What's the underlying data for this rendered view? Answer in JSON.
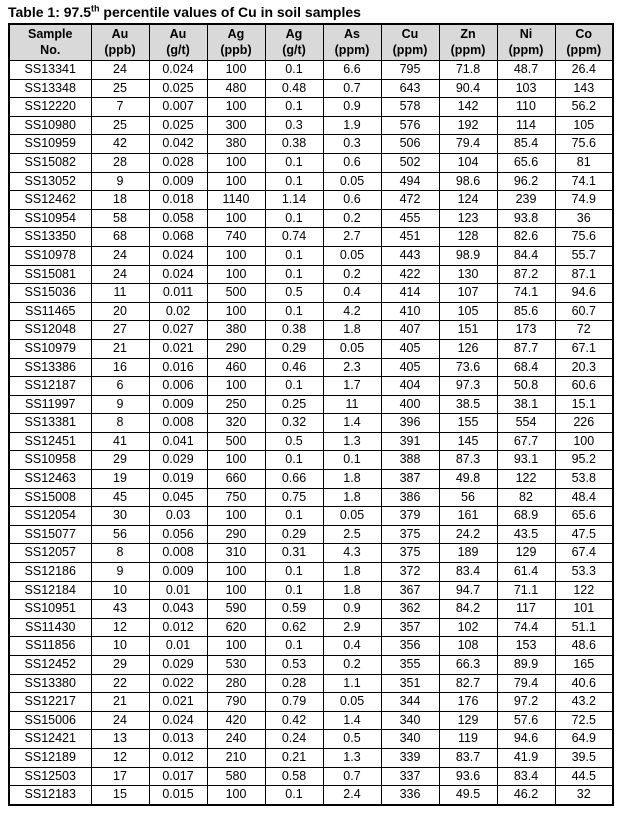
{
  "title": {
    "prefix": "Table 1: 97.5",
    "superscript": "th",
    "suffix": " percentile values of Cu in soil samples"
  },
  "table": {
    "columns": [
      {
        "id": "sample-no",
        "line1": "Sample",
        "line2": "No."
      },
      {
        "id": "au-ppb",
        "line1": "Au",
        "line2": "(ppb)"
      },
      {
        "id": "au-gt",
        "line1": "Au",
        "line2": "(g/t)"
      },
      {
        "id": "ag-ppb",
        "line1": "Ag",
        "line2": "(ppb)"
      },
      {
        "id": "ag-gt",
        "line1": "Ag",
        "line2": "(g/t)"
      },
      {
        "id": "as-ppm",
        "line1": "As",
        "line2": "(ppm)"
      },
      {
        "id": "cu-ppm",
        "line1": "Cu",
        "line2": "(ppm)"
      },
      {
        "id": "zn-ppm",
        "line1": "Zn",
        "line2": "(ppm)"
      },
      {
        "id": "ni-ppm",
        "line1": "Ni",
        "line2": "(ppm)"
      },
      {
        "id": "co-ppm",
        "line1": "Co",
        "line2": "(ppm)"
      }
    ],
    "rows": [
      [
        "SS13341",
        "24",
        "0.024",
        "100",
        "0.1",
        "6.6",
        "795",
        "71.8",
        "48.7",
        "26.4"
      ],
      [
        "SS13348",
        "25",
        "0.025",
        "480",
        "0.48",
        "0.7",
        "643",
        "90.4",
        "103",
        "143"
      ],
      [
        "SS12220",
        "7",
        "0.007",
        "100",
        "0.1",
        "0.9",
        "578",
        "142",
        "110",
        "56.2"
      ],
      [
        "SS10980",
        "25",
        "0.025",
        "300",
        "0.3",
        "1.9",
        "576",
        "192",
        "114",
        "105"
      ],
      [
        "SS10959",
        "42",
        "0.042",
        "380",
        "0.38",
        "0.3",
        "506",
        "79.4",
        "85.4",
        "75.6"
      ],
      [
        "SS15082",
        "28",
        "0.028",
        "100",
        "0.1",
        "0.6",
        "502",
        "104",
        "65.6",
        "81"
      ],
      [
        "SS13052",
        "9",
        "0.009",
        "100",
        "0.1",
        "0.05",
        "494",
        "98.6",
        "96.2",
        "74.1"
      ],
      [
        "SS12462",
        "18",
        "0.018",
        "1140",
        "1.14",
        "0.6",
        "472",
        "124",
        "239",
        "74.9"
      ],
      [
        "SS10954",
        "58",
        "0.058",
        "100",
        "0.1",
        "0.2",
        "455",
        "123",
        "93.8",
        "36"
      ],
      [
        "SS13350",
        "68",
        "0.068",
        "740",
        "0.74",
        "2.7",
        "451",
        "128",
        "82.6",
        "75.6"
      ],
      [
        "SS10978",
        "24",
        "0.024",
        "100",
        "0.1",
        "0.05",
        "443",
        "98.9",
        "84.4",
        "55.7"
      ],
      [
        "SS15081",
        "24",
        "0.024",
        "100",
        "0.1",
        "0.2",
        "422",
        "130",
        "87.2",
        "87.1"
      ],
      [
        "SS15036",
        "11",
        "0.011",
        "500",
        "0.5",
        "0.4",
        "414",
        "107",
        "74.1",
        "94.6"
      ],
      [
        "SS11465",
        "20",
        "0.02",
        "100",
        "0.1",
        "4.2",
        "410",
        "105",
        "85.6",
        "60.7"
      ],
      [
        "SS12048",
        "27",
        "0.027",
        "380",
        "0.38",
        "1.8",
        "407",
        "151",
        "173",
        "72"
      ],
      [
        "SS10979",
        "21",
        "0.021",
        "290",
        "0.29",
        "0.05",
        "405",
        "126",
        "87.7",
        "67.1"
      ],
      [
        "SS13386",
        "16",
        "0.016",
        "460",
        "0.46",
        "2.3",
        "405",
        "73.6",
        "68.4",
        "20.3"
      ],
      [
        "SS12187",
        "6",
        "0.006",
        "100",
        "0.1",
        "1.7",
        "404",
        "97.3",
        "50.8",
        "60.6"
      ],
      [
        "SS11997",
        "9",
        "0.009",
        "250",
        "0.25",
        "11",
        "400",
        "38.5",
        "38.1",
        "15.1"
      ],
      [
        "SS13381",
        "8",
        "0.008",
        "320",
        "0.32",
        "1.4",
        "396",
        "155",
        "554",
        "226"
      ],
      [
        "SS12451",
        "41",
        "0.041",
        "500",
        "0.5",
        "1.3",
        "391",
        "145",
        "67.7",
        "100"
      ],
      [
        "SS10958",
        "29",
        "0.029",
        "100",
        "0.1",
        "0.1",
        "388",
        "87.3",
        "93.1",
        "95.2"
      ],
      [
        "SS12463",
        "19",
        "0.019",
        "660",
        "0.66",
        "1.8",
        "387",
        "49.8",
        "122",
        "53.8"
      ],
      [
        "SS15008",
        "45",
        "0.045",
        "750",
        "0.75",
        "1.8",
        "386",
        "56",
        "82",
        "48.4"
      ],
      [
        "SS12054",
        "30",
        "0.03",
        "100",
        "0.1",
        "0.05",
        "379",
        "161",
        "68.9",
        "65.6"
      ],
      [
        "SS15077",
        "56",
        "0.056",
        "290",
        "0.29",
        "2.5",
        "375",
        "24.2",
        "43.5",
        "47.5"
      ],
      [
        "SS12057",
        "8",
        "0.008",
        "310",
        "0.31",
        "4.3",
        "375",
        "189",
        "129",
        "67.4"
      ],
      [
        "SS12186",
        "9",
        "0.009",
        "100",
        "0.1",
        "1.8",
        "372",
        "83.4",
        "61.4",
        "53.3"
      ],
      [
        "SS12184",
        "10",
        "0.01",
        "100",
        "0.1",
        "1.8",
        "367",
        "94.7",
        "71.1",
        "122"
      ],
      [
        "SS10951",
        "43",
        "0.043",
        "590",
        "0.59",
        "0.9",
        "362",
        "84.2",
        "117",
        "101"
      ],
      [
        "SS11430",
        "12",
        "0.012",
        "620",
        "0.62",
        "2.9",
        "357",
        "102",
        "74.4",
        "51.1"
      ],
      [
        "SS11856",
        "10",
        "0.01",
        "100",
        "0.1",
        "0.4",
        "356",
        "108",
        "153",
        "48.6"
      ],
      [
        "SS12452",
        "29",
        "0.029",
        "530",
        "0.53",
        "0.2",
        "355",
        "66.3",
        "89.9",
        "165"
      ],
      [
        "SS13380",
        "22",
        "0.022",
        "280",
        "0.28",
        "1.1",
        "351",
        "82.7",
        "79.4",
        "40.6"
      ],
      [
        "SS12217",
        "21",
        "0.021",
        "790",
        "0.79",
        "0.05",
        "344",
        "176",
        "97.2",
        "43.2"
      ],
      [
        "SS15006",
        "24",
        "0.024",
        "420",
        "0.42",
        "1.4",
        "340",
        "129",
        "57.6",
        "72.5"
      ],
      [
        "SS12421",
        "13",
        "0.013",
        "240",
        "0.24",
        "0.5",
        "340",
        "119",
        "94.6",
        "64.9"
      ],
      [
        "SS12189",
        "12",
        "0.012",
        "210",
        "0.21",
        "1.3",
        "339",
        "83.7",
        "41.9",
        "39.5"
      ],
      [
        "SS12503",
        "17",
        "0.017",
        "580",
        "0.58",
        "0.7",
        "337",
        "93.6",
        "83.4",
        "44.5"
      ],
      [
        "SS12183",
        "15",
        "0.015",
        "100",
        "0.1",
        "2.4",
        "336",
        "49.5",
        "46.2",
        "32"
      ]
    ],
    "colors": {
      "header_background": "#d9d9d9",
      "border": "#000000",
      "text": "#000000"
    }
  }
}
